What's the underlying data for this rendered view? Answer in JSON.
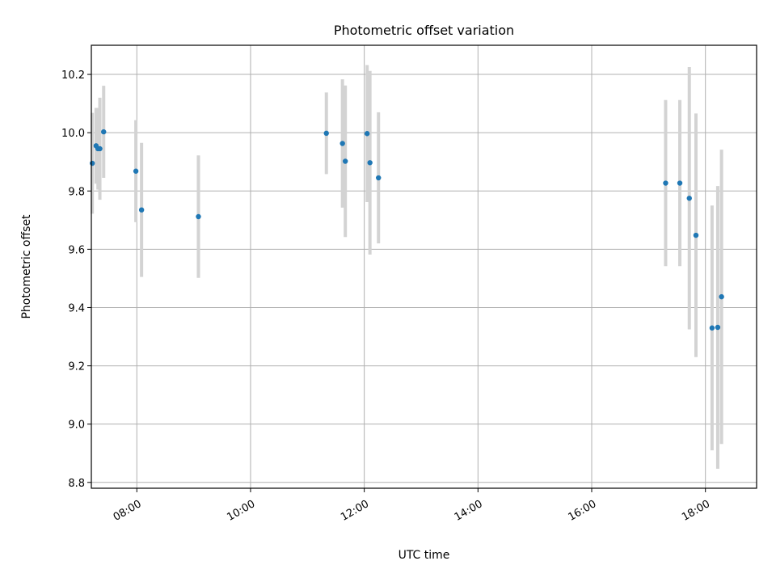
{
  "chart_data": {
    "type": "scatter",
    "title": "Photometric offset variation",
    "xlabel": "UTC time",
    "ylabel": "Photometric offset",
    "x_unit": "hours UTC",
    "xlim": [
      "07:12",
      "18:54"
    ],
    "ylim": [
      8.78,
      10.3
    ],
    "xticks": [
      {
        "time": "08:00",
        "label": "08:00"
      },
      {
        "time": "10:00",
        "label": "10:00"
      },
      {
        "time": "12:00",
        "label": "12:00"
      },
      {
        "time": "14:00",
        "label": "14:00"
      },
      {
        "time": "16:00",
        "label": "16:00"
      },
      {
        "time": "18:00",
        "label": "18:00"
      }
    ],
    "yticks": [
      {
        "value": 8.8,
        "label": "8.8"
      },
      {
        "value": 9.0,
        "label": "9.0"
      },
      {
        "value": 9.2,
        "label": "9.2"
      },
      {
        "value": 9.4,
        "label": "9.4"
      },
      {
        "value": 9.6,
        "label": "9.6"
      },
      {
        "value": 9.8,
        "label": "9.8"
      },
      {
        "value": 10.0,
        "label": "10.0"
      },
      {
        "value": 10.2,
        "label": "10.2"
      }
    ],
    "grid": true,
    "marker_color": "#1f77b4",
    "errorbar_color": "#d3d3d3",
    "points": [
      {
        "time": "07:13",
        "y": 9.895,
        "err": 0.173
      },
      {
        "time": "07:17",
        "y": 9.955,
        "err": 0.13
      },
      {
        "time": "07:19",
        "y": 9.945,
        "err": 0.14
      },
      {
        "time": "07:21",
        "y": 9.945,
        "err": 0.175
      },
      {
        "time": "07:25",
        "y": 10.003,
        "err": 0.158
      },
      {
        "time": "07:59",
        "y": 9.868,
        "err": 0.175
      },
      {
        "time": "08:05",
        "y": 9.735,
        "err": 0.23
      },
      {
        "time": "09:05",
        "y": 9.712,
        "err": 0.21
      },
      {
        "time": "11:20",
        "y": 9.998,
        "err": 0.14
      },
      {
        "time": "11:37",
        "y": 9.963,
        "err": 0.22
      },
      {
        "time": "11:40",
        "y": 9.902,
        "err": 0.26
      },
      {
        "time": "12:03",
        "y": 9.997,
        "err": 0.235
      },
      {
        "time": "12:06",
        "y": 9.897,
        "err": 0.315
      },
      {
        "time": "12:15",
        "y": 9.845,
        "err": 0.225
      },
      {
        "time": "17:18",
        "y": 9.827,
        "err": 0.285
      },
      {
        "time": "17:33",
        "y": 9.827,
        "err": 0.285
      },
      {
        "time": "17:43",
        "y": 9.775,
        "err": 0.45
      },
      {
        "time": "17:50",
        "y": 9.648,
        "err": 0.418
      },
      {
        "time": "18:07",
        "y": 9.33,
        "err": 0.42
      },
      {
        "time": "18:13",
        "y": 9.332,
        "err": 0.485
      },
      {
        "time": "18:17",
        "y": 9.437,
        "err": 0.505
      }
    ]
  }
}
